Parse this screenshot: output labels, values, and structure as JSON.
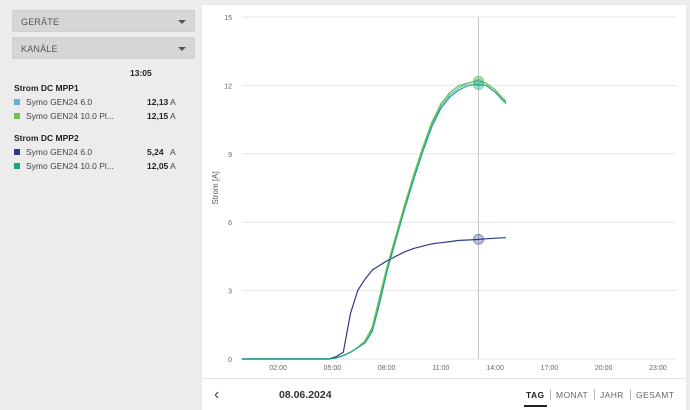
{
  "filters": {
    "devices_label": "GERÄTE",
    "channels_label": "KANÄLE"
  },
  "legend": {
    "time": "13:05",
    "groups": [
      {
        "title": "Strom DC MPP1",
        "items": [
          {
            "name": "Symo GEN24 6.0",
            "value": "12,13",
            "unit": "A",
            "color": "#6aaed6"
          },
          {
            "name": "Symo GEN24 10.0 Pl...",
            "value": "12,15",
            "unit": "A",
            "color": "#71c44b"
          }
        ]
      },
      {
        "title": "Strom DC MPP2",
        "items": [
          {
            "name": "Symo GEN24 6.0",
            "value": "5,24",
            "unit": "A",
            "color": "#2a3a8c"
          },
          {
            "name": "Symo GEN24 10.0 Pl...",
            "value": "12,05",
            "unit": "A",
            "color": "#15a585"
          }
        ]
      }
    ]
  },
  "chart_data": {
    "type": "line",
    "ylabel": "Strom [A]",
    "ylim": [
      0,
      15
    ],
    "yticks": [
      0,
      3,
      6,
      9,
      12,
      15
    ],
    "xlim": [
      0,
      24
    ],
    "xticks": [
      "02:00",
      "05:00",
      "08:00",
      "11:00",
      "14:00",
      "17:00",
      "20:00",
      "23:00"
    ],
    "xtick_hours": [
      2,
      5,
      8,
      11,
      14,
      17,
      20,
      23
    ],
    "cursor_hour": 13.08,
    "x": [
      0,
      4.8,
      5.2,
      5.6,
      6.0,
      6.4,
      6.8,
      7.2,
      7.6,
      8.0,
      8.5,
      9.0,
      9.5,
      10.0,
      10.5,
      11.0,
      11.5,
      12.0,
      12.5,
      13.0,
      13.5,
      14.0,
      14.6
    ],
    "series": [
      {
        "name": "Strom DC MPP1 – Symo GEN24 6.0",
        "color": "#6aaed6",
        "values": [
          0,
          0,
          0.05,
          0.15,
          0.3,
          0.5,
          0.8,
          1.3,
          2.6,
          3.9,
          5.3,
          6.7,
          8.0,
          9.2,
          10.3,
          11.1,
          11.6,
          11.9,
          12.1,
          12.2,
          12.1,
          11.8,
          11.3
        ]
      },
      {
        "name": "Strom DC MPP1 – Symo GEN24 10.0 Plus",
        "color": "#71c44b",
        "values": [
          0,
          0,
          0.05,
          0.15,
          0.3,
          0.5,
          0.8,
          1.4,
          2.7,
          4.0,
          5.4,
          6.8,
          8.1,
          9.3,
          10.4,
          11.2,
          11.7,
          12.0,
          12.1,
          12.2,
          12.1,
          11.8,
          11.3
        ]
      },
      {
        "name": "Strom DC MPP2 – Symo GEN24 6.0",
        "color": "#2a3a8c",
        "values": [
          0,
          0,
          0.1,
          0.3,
          2.0,
          3.0,
          3.5,
          3.9,
          4.1,
          4.3,
          4.5,
          4.7,
          4.85,
          4.95,
          5.05,
          5.1,
          5.15,
          5.2,
          5.22,
          5.24,
          5.27,
          5.3,
          5.32
        ]
      },
      {
        "name": "Strom DC MPP2 – Symo GEN24 10.0 Plus",
        "color": "#15a585",
        "values": [
          0,
          0,
          0.05,
          0.15,
          0.3,
          0.5,
          0.7,
          1.2,
          2.4,
          3.8,
          5.2,
          6.6,
          7.9,
          9.1,
          10.2,
          11.0,
          11.5,
          11.8,
          12.0,
          12.05,
          12.0,
          11.7,
          11.2
        ]
      }
    ]
  },
  "footer": {
    "back_icon": "chevron-left-icon",
    "date": "08.06.2024",
    "tabs": [
      {
        "label": "TAG",
        "active": true
      },
      {
        "label": "MONAT"
      },
      {
        "label": "JAHR"
      },
      {
        "label": "GESAMT"
      }
    ]
  }
}
